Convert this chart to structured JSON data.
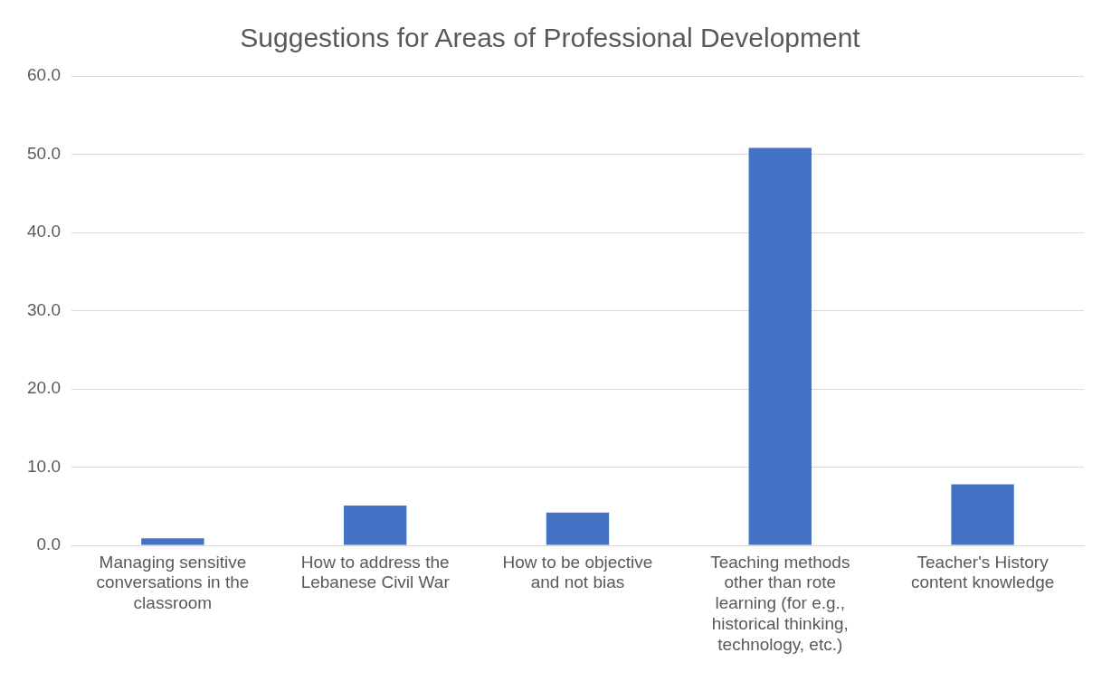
{
  "chart_data": {
    "type": "bar",
    "title": "Suggestions for Areas of Professional Development",
    "categories": [
      "Managing sensitive conversations in the classroom",
      "How to address the Lebanese Civil War",
      "How to be objective and not bias",
      "Teaching methods other than rote learning (for e.g., historical thinking, technology, etc.)",
      "Teacher's History content knowledge"
    ],
    "values": [
      0.9,
      5.1,
      4.2,
      50.8,
      7.8
    ],
    "color": "#4472c4",
    "ylim": [
      0,
      60
    ],
    "yticks": [
      {
        "value": 0,
        "label": "0.0"
      },
      {
        "value": 10,
        "label": "10.0"
      },
      {
        "value": 20,
        "label": "20.0"
      },
      {
        "value": 30,
        "label": "30.0"
      },
      {
        "value": 40,
        "label": "40.0"
      },
      {
        "value": 50,
        "label": "50.0"
      },
      {
        "value": 60,
        "label": "60.0"
      }
    ],
    "grid": "y"
  }
}
